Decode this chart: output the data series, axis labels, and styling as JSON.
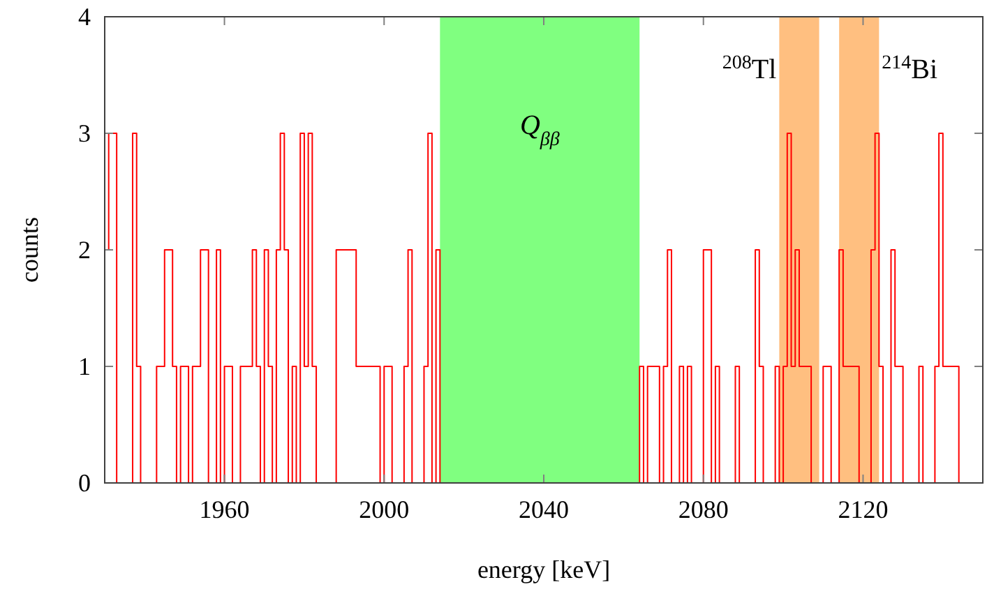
{
  "chart_data": {
    "type": "histogram",
    "xlabel": "energy [keV]",
    "ylabel": "counts",
    "bins": [
      1930,
      1931,
      1932,
      1933,
      1934,
      1935,
      1936,
      1937,
      1938,
      1939,
      1940,
      1941,
      1942,
      1943,
      1944,
      1945,
      1946,
      1947,
      1948,
      1949,
      1950,
      1951,
      1952,
      1953,
      1954,
      1955,
      1956,
      1957,
      1958,
      1959,
      1960,
      1961,
      1962,
      1963,
      1964,
      1965,
      1966,
      1967,
      1968,
      1969,
      1970,
      1971,
      1972,
      1973,
      1974,
      1975,
      1976,
      1977,
      1978,
      1979,
      1980,
      1981,
      1982,
      1983,
      1984,
      1985,
      1986,
      1987,
      1988,
      1989,
      1990,
      1991,
      1992,
      1993,
      1994,
      1995,
      1996,
      1997,
      1998,
      1999,
      2000,
      2001,
      2002,
      2003,
      2004,
      2005,
      2006,
      2007,
      2008,
      2009,
      2010,
      2011,
      2012,
      2013,
      2014,
      2015,
      2016,
      2017,
      2018,
      2019,
      2020,
      2021,
      2022,
      2023,
      2024,
      2025,
      2026,
      2027,
      2028,
      2029,
      2030,
      2031,
      2032,
      2033,
      2034,
      2035,
      2036,
      2037,
      2038,
      2039,
      2040,
      2041,
      2042,
      2043,
      2044,
      2045,
      2046,
      2047,
      2048,
      2049,
      2050,
      2051,
      2052,
      2053,
      2054,
      2055,
      2056,
      2057,
      2058,
      2059,
      2060,
      2061,
      2062,
      2063,
      2064,
      2065,
      2066,
      2067,
      2068,
      2069,
      2070,
      2071,
      2072,
      2073,
      2074,
      2075,
      2076,
      2077,
      2078,
      2079,
      2080,
      2081,
      2082,
      2083,
      2084,
      2085,
      2086,
      2087,
      2088,
      2089,
      2090,
      2091,
      2092,
      2093,
      2094,
      2095,
      2096,
      2097,
      2098,
      2099,
      2100,
      2101,
      2102,
      2103,
      2104,
      2105,
      2106,
      2107,
      2108,
      2109,
      2110,
      2111,
      2112,
      2113,
      2114,
      2115,
      2116,
      2117,
      2118,
      2119,
      2120,
      2121,
      2122,
      2123,
      2124,
      2125,
      2126,
      2127,
      2128,
      2129,
      2130,
      2131,
      2132,
      2133,
      2134,
      2135,
      2136,
      2137,
      2138,
      2139,
      2140,
      2141,
      2142,
      2143,
      2144,
      2145,
      2146,
      2147,
      2148,
      2149,
      2150
    ],
    "values": [
      2,
      3,
      3,
      0,
      0,
      0,
      0,
      3,
      1,
      0,
      0,
      0,
      0,
      1,
      1,
      2,
      2,
      1,
      0,
      1,
      1,
      0,
      1,
      1,
      2,
      2,
      0,
      0,
      2,
      0,
      1,
      1,
      0,
      0,
      1,
      1,
      1,
      2,
      1,
      0,
      2,
      1,
      0,
      2,
      3,
      2,
      0,
      1,
      0,
      3,
      1,
      3,
      1,
      0,
      0,
      0,
      0,
      0,
      2,
      2,
      2,
      2,
      2,
      1,
      1,
      1,
      1,
      1,
      1,
      0,
      1,
      1,
      0,
      0,
      0,
      1,
      2,
      0,
      0,
      0,
      1,
      3,
      0,
      2,
      0,
      0,
      0,
      0,
      0,
      0,
      0,
      0,
      0,
      0,
      0,
      0,
      0,
      0,
      0,
      0,
      0,
      0,
      0,
      0,
      0,
      0,
      0,
      0,
      0,
      0,
      0,
      0,
      0,
      0,
      0,
      0,
      0,
      0,
      0,
      0,
      0,
      0,
      0,
      0,
      0,
      0,
      0,
      0,
      0,
      0,
      0,
      0,
      0,
      0,
      1,
      0,
      1,
      1,
      1,
      0,
      1,
      2,
      0,
      0,
      1,
      0,
      1,
      0,
      0,
      0,
      2,
      2,
      0,
      1,
      0,
      0,
      0,
      0,
      1,
      0,
      0,
      0,
      0,
      2,
      1,
      0,
      0,
      0,
      1,
      0,
      1,
      3,
      1,
      2,
      1,
      1,
      1,
      0,
      0,
      0,
      1,
      1,
      0,
      0,
      2,
      1,
      1,
      1,
      1,
      0,
      0,
      0,
      2,
      3,
      1,
      0,
      0,
      2,
      1,
      1,
      0,
      0,
      0,
      0,
      1,
      0,
      0,
      0,
      1,
      3,
      1,
      1,
      1,
      1,
      0,
      0,
      0,
      0,
      0,
      0
    ],
    "color": "#ff0000",
    "xlim": [
      1930,
      2150
    ],
    "xticks": [
      1960,
      2000,
      2040,
      2080,
      2120
    ],
    "ylim": [
      0,
      4
    ],
    "yticks": [
      0,
      1,
      2,
      3,
      4
    ],
    "bands": [
      {
        "axis": "x",
        "from": 2014,
        "to": 2064,
        "label": "Q$_{ββ}$",
        "color": "#80ff80"
      },
      {
        "axis": "x",
        "from": 2099,
        "to": 2109,
        "label": "$^{208}$Tl",
        "color": "#ffbf80"
      },
      {
        "axis": "x",
        "from": 2114,
        "to": 2124,
        "label": "$^{214}$Bi",
        "color": "#ffbf80"
      }
    ]
  }
}
